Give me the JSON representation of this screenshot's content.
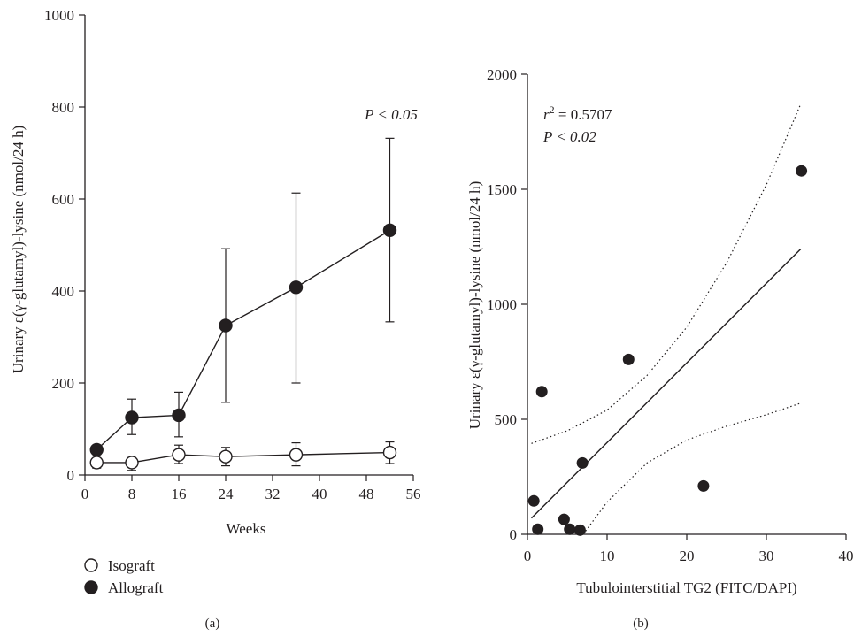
{
  "chart_data": [
    {
      "panel_label": "(a)",
      "type": "line",
      "xlabel": "Weeks",
      "ylabel": "Urinary ε(γ-glutamyl)-lysine (nmol/24 h)",
      "xlim": [
        0,
        56
      ],
      "ylim": [
        0,
        1000
      ],
      "xticks": [
        0,
        8,
        16,
        24,
        32,
        40,
        48,
        56
      ],
      "yticks": [
        0,
        200,
        400,
        600,
        800,
        1000
      ],
      "annotation": "P < 0.05",
      "legend": {
        "placement": "bottom-left"
      },
      "series": [
        {
          "name": "Isograft",
          "marker": "open-circle",
          "x": [
            2,
            8,
            16,
            24,
            36,
            52
          ],
          "y": [
            27,
            27,
            44,
            40,
            44,
            49
          ],
          "err_low": [
            15,
            10,
            25,
            20,
            20,
            25
          ],
          "err_high": [
            45,
            38,
            65,
            60,
            70,
            72
          ]
        },
        {
          "name": "Allograft",
          "marker": "filled-circle",
          "x": [
            2,
            8,
            16,
            24,
            36,
            52
          ],
          "y": [
            55,
            125,
            130,
            325,
            408,
            532
          ],
          "err_low": [
            45,
            88,
            83,
            158,
            200,
            333
          ],
          "err_high": [
            62,
            165,
            180,
            492,
            613,
            732
          ]
        }
      ]
    },
    {
      "panel_label": "(b)",
      "type": "scatter",
      "xlabel": "Tubulointerstitial TG2 (FITC/DAPI)",
      "ylabel": "Urinary ε(γ-glutamyl)-lysine (nmol/24 h)",
      "xlim": [
        0,
        40
      ],
      "ylim": [
        0,
        2000
      ],
      "xticks": [
        0,
        10,
        20,
        30,
        40
      ],
      "yticks": [
        0,
        500,
        1000,
        1500,
        2000
      ],
      "annotation_r2_symbol": "r",
      "annotation_r2_exp": "2",
      "annotation_r2_value": " = 0.5707",
      "annotation_p": "P < 0.02",
      "points": {
        "x": [
          0.8,
          1.3,
          1.8,
          4.6,
          5.3,
          6.6,
          6.9,
          12.7,
          22.1,
          34.4
        ],
        "y": [
          145,
          22,
          620,
          65,
          22,
          18,
          310,
          760,
          210,
          1580
        ]
      },
      "regression_line": {
        "x": [
          0.5,
          34.3
        ],
        "y": [
          70,
          1240
        ]
      },
      "confidence_upper": {
        "x": [
          0.5,
          5,
          10,
          15,
          20,
          25,
          30,
          34.3
        ],
        "y": [
          395,
          450,
          540,
          690,
          900,
          1180,
          1520,
          1870
        ]
      },
      "confidence_lower": {
        "x": [
          7,
          10,
          15,
          20,
          25,
          30,
          34.3
        ],
        "y": [
          0,
          140,
          310,
          410,
          470,
          520,
          570
        ]
      }
    }
  ]
}
